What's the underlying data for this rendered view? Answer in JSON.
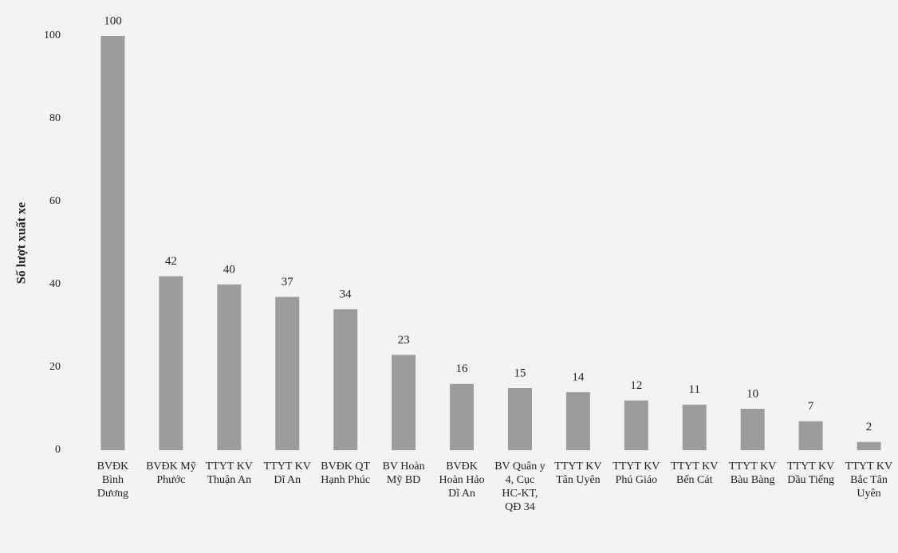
{
  "chart_data": {
    "type": "bar",
    "y_label": "Số lượt xuất xe",
    "categories": [
      "BVĐK Bình Dương",
      "BVĐK Mỹ Phước",
      "TTYT KV Thuận An",
      "TTYT KV Dĩ An",
      "BVĐK QT Hạnh Phúc",
      "BV Hoàn Mỹ BD",
      "BVĐK Hoàn Hảo Dĩ An",
      "BV Quân y 4, Cục HC-KT, QĐ 34",
      "TTYT KV Tân Uyên",
      "TTYT KV Phú Giáo",
      "TTYT KV Bến Cát",
      "TTYT KV Bàu Bàng",
      "TTYT KV Dầu Tiếng",
      "TTYT KV Bắc Tân Uyên"
    ],
    "values": [
      100,
      42,
      40,
      37,
      34,
      23,
      16,
      15,
      14,
      12,
      11,
      10,
      7,
      2
    ],
    "color": "#9c9c9c",
    "ylim": [
      0,
      100
    ],
    "yticks": [
      0,
      20,
      40,
      60,
      80,
      100
    ],
    "grid": false
  }
}
